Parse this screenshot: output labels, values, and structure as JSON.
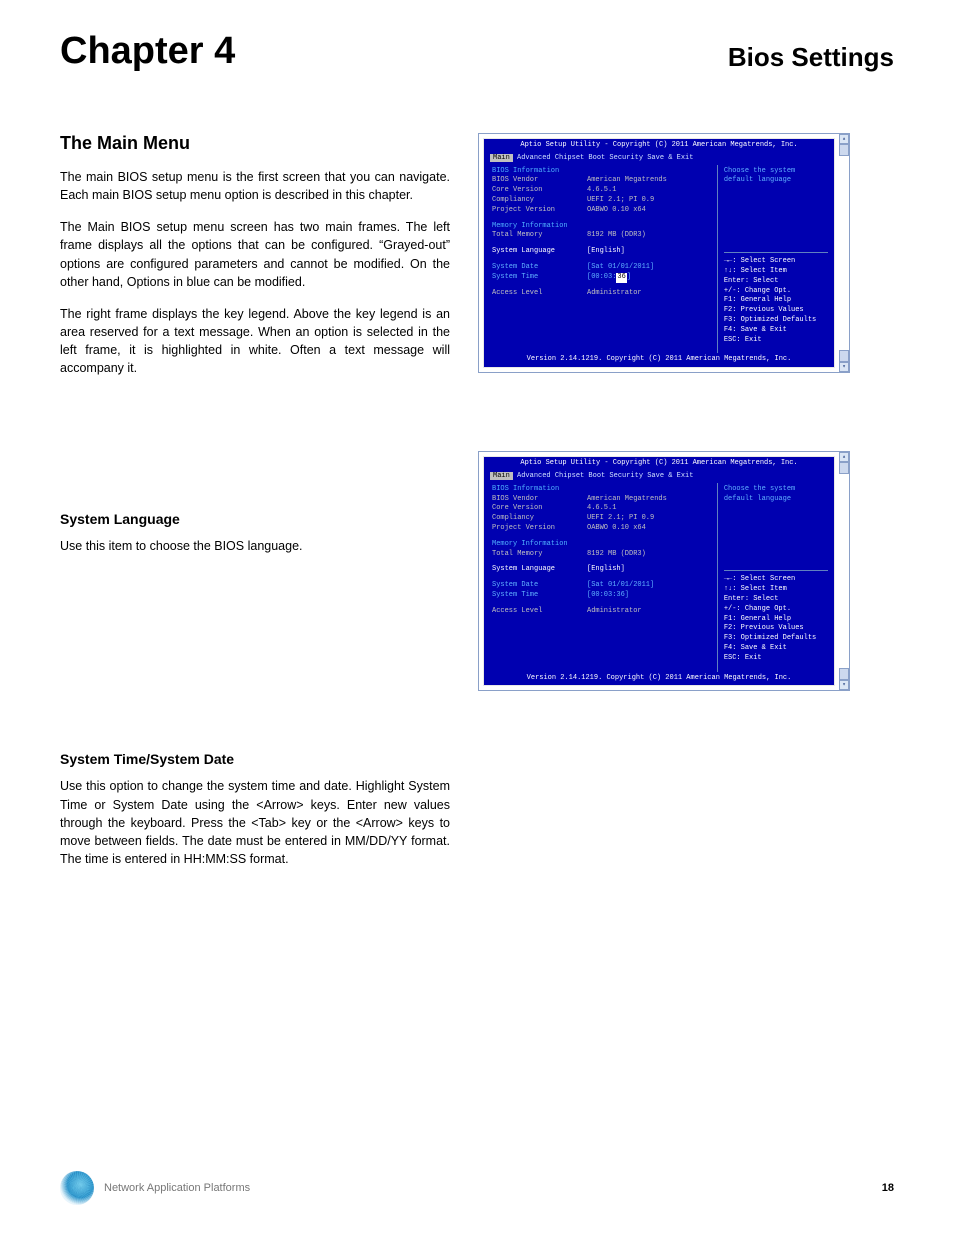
{
  "header": {
    "chapter": "Chapter 4",
    "title": "Bios Settings"
  },
  "section1": {
    "heading": "The Main Menu",
    "p1": "The main BIOS setup menu is the first screen that you can navigate. Each main BIOS setup menu option is described in this chapter.",
    "p2": "The Main BIOS setup menu screen has two main frames. The left frame displays all the options that can be configured. “Grayed-out” options are configured parameters and cannot be modified. On the other hand, Options in blue can be modified.",
    "p3": "The right frame displays the key legend. Above the key legend is an area reserved for a text message. When an option is selected in the left frame, it is highlighted in white. Often a text message will accompany it."
  },
  "section2": {
    "heading": "System Language",
    "p1": "Use this item to choose the BIOS language."
  },
  "section3": {
    "heading": "System Time/System Date",
    "p1": "Use this option to change the system time and date. Highlight System Time or System Date using the <Arrow> keys. Enter new values through the keyboard. Press the <Tab> key or the <Arrow> keys to move between fields. The date must be entered in MM/DD/YY format. The time is entered in HH:MM:SS format."
  },
  "bios": {
    "titlebar": "Aptio Setup Utility - Copyright (C) 2011 American Megatrends, Inc.",
    "tabs": [
      "Main",
      "Advanced",
      "Chipset",
      "Boot",
      "Security",
      "Save & Exit"
    ],
    "selected_tab": "Main",
    "info_heading": "BIOS Information",
    "rows_info": [
      {
        "label": "BIOS Vendor",
        "value": "American Megatrends"
      },
      {
        "label": "Core Version",
        "value": "4.6.5.1"
      },
      {
        "label": "Compliancy",
        "value": "UEFI 2.1; PI 0.9"
      },
      {
        "label": "Project Version",
        "value": "OABWO 0.10 x64"
      }
    ],
    "mem_heading": "Memory Information",
    "rows_mem": [
      {
        "label": "Total Memory",
        "value": "8192 MB (DDR3)"
      }
    ],
    "lang_row": {
      "label": "System Language",
      "value": "[English]"
    },
    "date_row": {
      "label": "System Date",
      "value": "[Sat 01/01/2011]"
    },
    "time_row": {
      "label": "System Time",
      "value": "[00:03:36]"
    },
    "access_row": {
      "label": "Access Level",
      "value": "Administrator"
    },
    "help_text1": "Choose the system",
    "help_text2": "default language",
    "keys": [
      "→←: Select Screen",
      "↑↓: Select Item",
      "Enter: Select",
      "+/-: Change Opt.",
      "F1: General Help",
      "F2: Previous Values",
      "F3: Optimized Defaults",
      "F4: Save & Exit",
      "ESC: Exit"
    ],
    "footer": "Version 2.14.1219. Copyright (C) 2011 American Megatrends, Inc."
  },
  "footer": {
    "text": "Network Application Platforms",
    "pagenum": "18"
  },
  "colors": {
    "bios_bg": "#0000b0",
    "bios_text_gray": "#c0c0c0",
    "bios_text_blue": "#60b0ff",
    "bios_text_white": "#ffffff",
    "frame_border": "#8aa0c8"
  }
}
